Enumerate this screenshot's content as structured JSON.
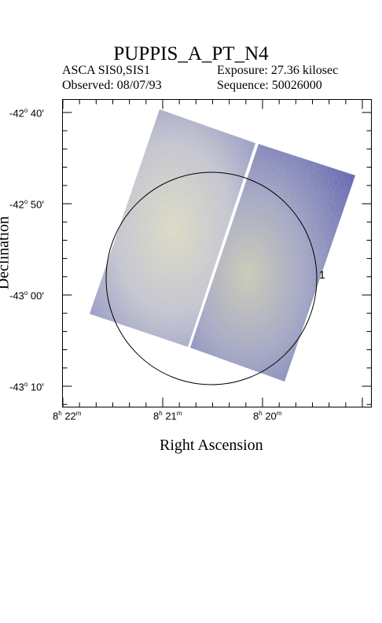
{
  "header": {
    "title": "PUPPIS_A_PT_N4",
    "instrument": "ASCA SIS0,SIS1",
    "exposure": "Exposure: 27.36 kilosec",
    "observed": "Observed: 08/07/93",
    "sequence": "Sequence: 50026000"
  },
  "axes": {
    "xlabel": "Right Ascension",
    "ylabel": "Declination",
    "yticks": [
      {
        "deg": "-42",
        "min": "40"
      },
      {
        "deg": "-42",
        "min": "50"
      },
      {
        "deg": "-43",
        "min": "00"
      },
      {
        "deg": "-43",
        "min": "10"
      }
    ],
    "xticks": [
      {
        "h": "8",
        "m": "22"
      },
      {
        "h": "8",
        "m": "21"
      },
      {
        "h": "8",
        "m": "20"
      }
    ]
  },
  "region_label": "1",
  "colors": {
    "frame": "#000000",
    "image_dark": "#5a5fb0",
    "image_light": "#dfe0c8",
    "circle": "#000000"
  }
}
